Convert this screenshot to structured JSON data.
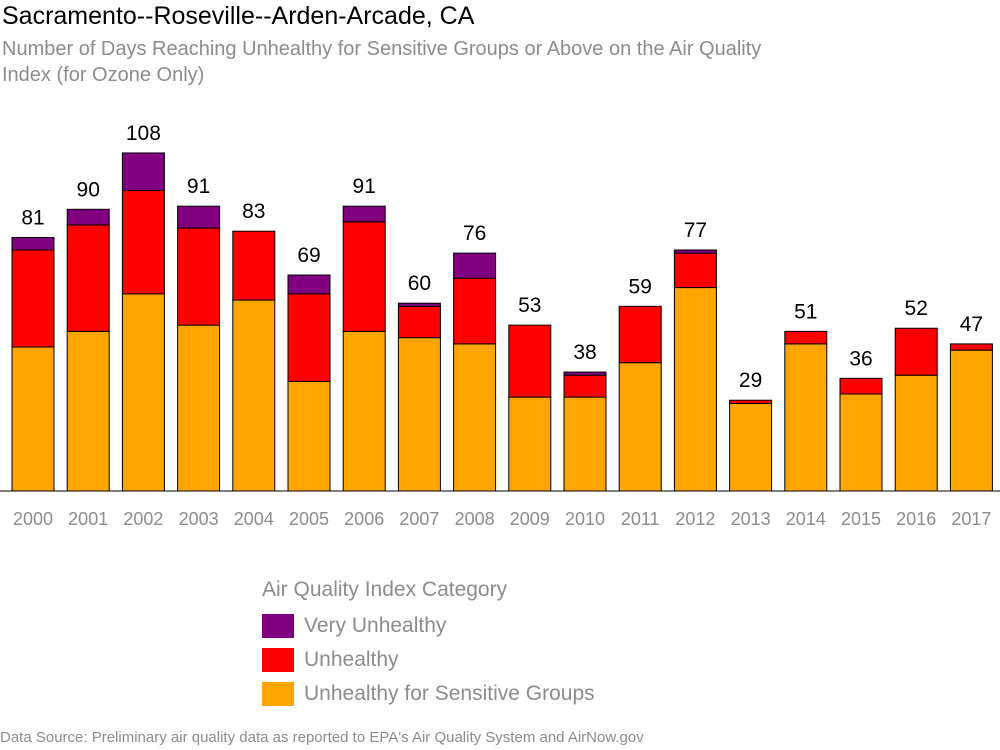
{
  "chart_data": {
    "type": "bar",
    "stacked": true,
    "title": "Sacramento--Roseville--Arden-Arcade, CA",
    "subtitle": "Number of Days Reaching Unhealthy for Sensitive Groups or Above on the Air Quality Index (for Ozone Only)",
    "categories": [
      "2000",
      "2001",
      "2002",
      "2003",
      "2004",
      "2005",
      "2006",
      "2007",
      "2008",
      "2009",
      "2010",
      "2011",
      "2012",
      "2013",
      "2014",
      "2015",
      "2016",
      "2017"
    ],
    "totals": [
      81,
      90,
      108,
      91,
      83,
      69,
      91,
      60,
      76,
      53,
      38,
      59,
      77,
      29,
      51,
      36,
      52,
      47
    ],
    "series": [
      {
        "name": "Unhealthy for Sensitive Groups",
        "color": "#FFA500",
        "values": [
          46,
          51,
          63,
          53,
          61,
          35,
          51,
          49,
          47,
          30,
          30,
          41,
          65,
          28,
          47,
          31,
          37,
          45
        ]
      },
      {
        "name": "Unhealthy",
        "color": "#FF0000",
        "values": [
          31,
          34,
          33,
          31,
          22,
          28,
          35,
          10,
          21,
          23,
          7,
          18,
          11,
          1,
          4,
          5,
          15,
          2
        ]
      },
      {
        "name": "Very Unhealthy",
        "color": "#800080",
        "values": [
          4,
          5,
          12,
          7,
          0,
          6,
          5,
          1,
          8,
          0,
          1,
          0,
          1,
          0,
          0,
          0,
          0,
          0
        ]
      }
    ],
    "ylim": [
      0,
      108
    ],
    "grid": false,
    "legend": {
      "title": "Air Quality Index Category",
      "placement": "bottom-center",
      "items": [
        {
          "label": "Very Unhealthy",
          "color": "#800080"
        },
        {
          "label": "Unhealthy",
          "color": "#FF0000"
        },
        {
          "label": "Unhealthy for Sensitive Groups",
          "color": "#FFA500"
        }
      ]
    },
    "source": "Data Source: Preliminary air quality data as reported to EPA's Air Quality System and AirNow.gov"
  }
}
